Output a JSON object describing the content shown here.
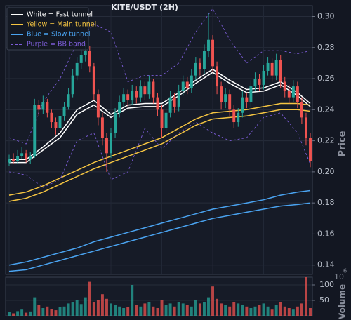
{
  "chart_data": {
    "type": "candlestick",
    "title": "KITE/USDT (2H)",
    "y_label": "Price",
    "volume_label": "Volume",
    "volume_scale_base": "10",
    "volume_scale_exponent": "6",
    "up_color": "#26a69a",
    "down_color": "#ef5350",
    "grid": true,
    "legend": "upper left",
    "ylim": [
      0.134,
      0.307
    ],
    "yticks": [
      0.14,
      0.16,
      0.18,
      {
        "value": 0.2,
        "label": "0.20"
      },
      0.22,
      0.24,
      0.26,
      0.28,
      {
        "value": 0.3,
        "label": "0.30"
      }
    ],
    "volume_ylim": [
      0,
      125
    ],
    "volume_yticks": [
      50,
      100
    ],
    "open": [
      0.206,
      0.208,
      0.207,
      0.21,
      0.212,
      0.208,
      0.21,
      0.243,
      0.24,
      0.245,
      0.238,
      0.232,
      0.228,
      0.236,
      0.242,
      0.25,
      0.262,
      0.27,
      0.275,
      0.278,
      0.268,
      0.25,
      0.235,
      0.222,
      0.212,
      0.225,
      0.238,
      0.245,
      0.25,
      0.246,
      0.252,
      0.248,
      0.255,
      0.25,
      0.258,
      0.248,
      0.24,
      0.228,
      0.238,
      0.248,
      0.242,
      0.252,
      0.258,
      0.254,
      0.262,
      0.27,
      0.266,
      0.278,
      0.285,
      0.268,
      0.255,
      0.245,
      0.25,
      0.24,
      0.232,
      0.238,
      0.248,
      0.245,
      0.255,
      0.26,
      0.256,
      0.265,
      0.27,
      0.262,
      0.272,
      0.258,
      0.252,
      0.248,
      0.255,
      0.245,
      0.235,
      0.222
    ],
    "high": [
      0.211,
      0.212,
      0.214,
      0.216,
      0.214,
      0.213,
      0.247,
      0.246,
      0.249,
      0.247,
      0.24,
      0.235,
      0.239,
      0.245,
      0.254,
      0.266,
      0.274,
      0.279,
      0.283,
      0.281,
      0.27,
      0.253,
      0.238,
      0.225,
      0.228,
      0.241,
      0.249,
      0.254,
      0.253,
      0.256,
      0.255,
      0.259,
      0.258,
      0.262,
      0.26,
      0.251,
      0.243,
      0.241,
      0.252,
      0.251,
      0.256,
      0.262,
      0.261,
      0.266,
      0.274,
      0.273,
      0.282,
      0.302,
      0.288,
      0.271,
      0.258,
      0.254,
      0.253,
      0.243,
      0.241,
      0.252,
      0.251,
      0.259,
      0.264,
      0.263,
      0.269,
      0.274,
      0.273,
      0.276,
      0.275,
      0.261,
      0.256,
      0.259,
      0.258,
      0.248,
      0.238,
      0.225
    ],
    "low": [
      0.204,
      0.205,
      0.205,
      0.208,
      0.206,
      0.205,
      0.209,
      0.236,
      0.237,
      0.235,
      0.228,
      0.224,
      0.226,
      0.233,
      0.24,
      0.248,
      0.259,
      0.266,
      0.271,
      0.264,
      0.246,
      0.23,
      0.217,
      0.2,
      0.209,
      0.222,
      0.235,
      0.242,
      0.242,
      0.243,
      0.244,
      0.245,
      0.246,
      0.247,
      0.244,
      0.236,
      0.222,
      0.225,
      0.235,
      0.238,
      0.239,
      0.249,
      0.25,
      0.251,
      0.259,
      0.262,
      0.263,
      0.274,
      0.264,
      0.25,
      0.24,
      0.241,
      0.236,
      0.228,
      0.229,
      0.235,
      0.241,
      0.242,
      0.252,
      0.252,
      0.253,
      0.262,
      0.258,
      0.259,
      0.254,
      0.248,
      0.244,
      0.245,
      0.241,
      0.231,
      0.217,
      0.203
    ],
    "close": [
      0.208,
      0.207,
      0.21,
      0.212,
      0.208,
      0.21,
      0.243,
      0.24,
      0.245,
      0.238,
      0.232,
      0.228,
      0.236,
      0.242,
      0.25,
      0.262,
      0.27,
      0.275,
      0.278,
      0.268,
      0.25,
      0.235,
      0.222,
      0.212,
      0.225,
      0.238,
      0.245,
      0.25,
      0.246,
      0.252,
      0.248,
      0.255,
      0.25,
      0.258,
      0.248,
      0.24,
      0.228,
      0.238,
      0.248,
      0.242,
      0.252,
      0.258,
      0.254,
      0.262,
      0.27,
      0.266,
      0.278,
      0.285,
      0.268,
      0.255,
      0.245,
      0.25,
      0.24,
      0.232,
      0.238,
      0.248,
      0.245,
      0.255,
      0.26,
      0.256,
      0.265,
      0.27,
      0.262,
      0.272,
      0.258,
      0.252,
      0.248,
      0.255,
      0.245,
      0.235,
      0.222,
      0.207
    ],
    "volume": [
      12,
      8,
      15,
      20,
      10,
      14,
      60,
      35,
      25,
      30,
      22,
      18,
      28,
      30,
      40,
      45,
      52,
      38,
      60,
      110,
      45,
      50,
      70,
      55,
      40,
      35,
      30,
      25,
      28,
      100,
      35,
      30,
      40,
      45,
      30,
      25,
      50,
      35,
      40,
      30,
      45,
      40,
      35,
      30,
      50,
      40,
      45,
      60,
      95,
      55,
      40,
      35,
      30,
      45,
      40,
      35,
      30,
      25,
      30,
      35,
      40,
      30,
      20,
      35,
      45,
      30,
      25,
      20,
      30,
      40,
      125,
      25
    ],
    "line_x": [
      0,
      4,
      8,
      12,
      16,
      20,
      24,
      28,
      32,
      36,
      40,
      44,
      48,
      52,
      56,
      60,
      64,
      68,
      71
    ],
    "overlays": [
      {
        "name": "White = Fast tunnel",
        "color": "#ffffff",
        "dashed": false,
        "upper": [
          0.208,
          0.208,
          0.216,
          0.225,
          0.24,
          0.246,
          0.237,
          0.243,
          0.244,
          0.244,
          0.251,
          0.259,
          0.266,
          0.259,
          0.253,
          0.254,
          0.258,
          0.251,
          0.244
        ],
        "lower": [
          0.206,
          0.206,
          0.214,
          0.222,
          0.237,
          0.243,
          0.235,
          0.241,
          0.242,
          0.242,
          0.249,
          0.257,
          0.264,
          0.257,
          0.251,
          0.252,
          0.256,
          0.249,
          0.242
        ]
      },
      {
        "name": "Yellow = Main tunnel",
        "color": "#f5c542",
        "dashed": false,
        "upper": [
          0.185,
          0.187,
          0.191,
          0.196,
          0.201,
          0.206,
          0.21,
          0.214,
          0.218,
          0.222,
          0.228,
          0.234,
          0.238,
          0.239,
          0.24,
          0.242,
          0.244,
          0.244,
          0.243
        ],
        "lower": [
          0.181,
          0.183,
          0.187,
          0.192,
          0.197,
          0.202,
          0.206,
          0.21,
          0.214,
          0.218,
          0.224,
          0.23,
          0.234,
          0.235,
          0.236,
          0.238,
          0.24,
          0.24,
          0.239
        ]
      },
      {
        "name": "Blue = Slow tunnel",
        "color": "#4aa3f0",
        "dashed": false,
        "upper": [
          0.14,
          0.142,
          0.145,
          0.148,
          0.151,
          0.155,
          0.158,
          0.161,
          0.164,
          0.167,
          0.17,
          0.173,
          0.176,
          0.178,
          0.18,
          0.182,
          0.185,
          0.187,
          0.188
        ],
        "lower": [
          0.136,
          0.137,
          0.14,
          0.143,
          0.146,
          0.149,
          0.152,
          0.155,
          0.158,
          0.161,
          0.164,
          0.167,
          0.17,
          0.172,
          0.174,
          0.176,
          0.178,
          0.179,
          0.18
        ]
      },
      {
        "name": "Purple = BB band",
        "color": "#7b5cd6",
        "dashed": true,
        "upper": [
          0.222,
          0.218,
          0.245,
          0.26,
          0.283,
          0.295,
          0.29,
          0.258,
          0.262,
          0.262,
          0.27,
          0.29,
          0.305,
          0.285,
          0.27,
          0.278,
          0.278,
          0.276,
          0.278
        ],
        "lower": [
          0.2,
          0.198,
          0.19,
          0.195,
          0.22,
          0.225,
          0.195,
          0.2,
          0.228,
          0.215,
          0.225,
          0.232,
          0.225,
          0.22,
          0.222,
          0.235,
          0.238,
          0.225,
          0.205
        ]
      }
    ]
  }
}
